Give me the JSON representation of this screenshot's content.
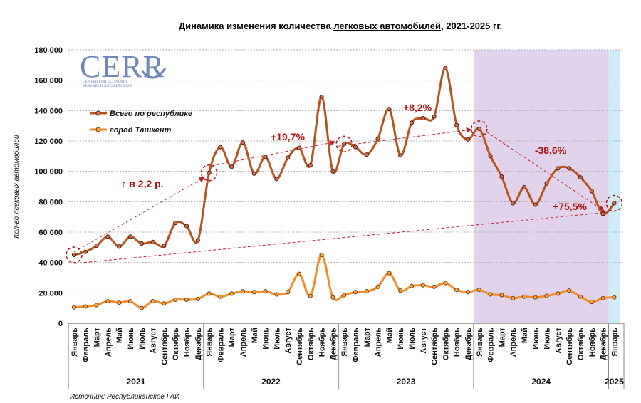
{
  "chart_data": {
    "type": "line",
    "title_prefix": "Динамика изменения количества ",
    "title_underlined": "легковых автомобилей",
    "title_suffix": ", 2021-2025 гг.",
    "ylabel": "Кол-во легковых автомобилей",
    "ylim": [
      0,
      180000
    ],
    "yticks": [
      0,
      20000,
      40000,
      60000,
      80000,
      100000,
      120000,
      140000,
      160000,
      180000
    ],
    "ytick_labels": [
      "0",
      "20 000",
      "40 000",
      "60 000",
      "80 000",
      "100 000",
      "120 000",
      "140 000",
      "160 000",
      "180 000"
    ],
    "categories": [
      "Январь",
      "Февраль",
      "Март",
      "Апрель",
      "Май",
      "Июнь",
      "Июль",
      "Август",
      "Сентябрь",
      "Октябрь",
      "Ноябрь",
      "Декабрь",
      "Январь",
      "Февраль",
      "Март",
      "Апрель",
      "Май",
      "Июнь",
      "Июль",
      "Август",
      "Сентябрь",
      "Октябрь",
      "Ноябрь",
      "Декабрь",
      "Январь",
      "Февраль",
      "Март",
      "Апрель",
      "Май",
      "Июнь",
      "Июль",
      "Август",
      "Сентябрь",
      "Октябрь",
      "Ноябрь",
      "Декабрь",
      "Январь",
      "Февраль",
      "Март",
      "Апрель",
      "Май",
      "Июнь",
      "Июль",
      "Август",
      "Сентябрь",
      "Октябрь",
      "Ноябрь",
      "Декабрь",
      "Январь"
    ],
    "years": [
      {
        "label": "2021",
        "start": 0,
        "end": 11
      },
      {
        "label": "2022",
        "start": 12,
        "end": 23
      },
      {
        "label": "2023",
        "start": 24,
        "end": 35
      },
      {
        "label": "2024",
        "start": 36,
        "end": 47
      },
      {
        "label": "2025",
        "start": 48,
        "end": 48
      }
    ],
    "series": [
      {
        "name": "Всего по республике",
        "color": "#b5541c",
        "values": [
          45000,
          47000,
          51000,
          57000,
          50500,
          57000,
          52500,
          53500,
          51000,
          66000,
          64000,
          54500,
          99000,
          116000,
          103000,
          119000,
          98500,
          109500,
          95000,
          109000,
          115500,
          104000,
          149000,
          100000,
          118000,
          116000,
          111000,
          121500,
          141000,
          110500,
          132000,
          135000,
          136000,
          168000,
          130500,
          121000,
          128000,
          110000,
          96500,
          79000,
          89500,
          78000,
          92000,
          102000,
          102000,
          96000,
          87000,
          72000,
          79000
        ]
      },
      {
        "name": "город Ташкент",
        "color": "#f08c2a",
        "values": [
          10500,
          11000,
          12000,
          14500,
          13500,
          14500,
          10000,
          14500,
          13000,
          15500,
          15500,
          16000,
          19500,
          17500,
          19500,
          21000,
          20500,
          21000,
          19000,
          20500,
          32500,
          18000,
          45000,
          17000,
          18500,
          20500,
          21000,
          24000,
          33000,
          21500,
          24500,
          25000,
          24000,
          26500,
          22000,
          20500,
          22000,
          19000,
          18500,
          16500,
          17500,
          17000,
          18000,
          19500,
          21500,
          17500,
          14000,
          16500,
          17000
        ]
      }
    ],
    "shaded_regions": [
      {
        "start": 36,
        "end": 47,
        "color": "#e2d3ec"
      },
      {
        "start": 48,
        "end": 48,
        "color": "#cdeef7"
      }
    ],
    "annotations": [
      {
        "text": "↑ в 2,2 р."
      },
      {
        "text": "+19,7%"
      },
      {
        "text": "+8,2%"
      },
      {
        "text": "-38,6%"
      },
      {
        "text": "+75,5%"
      }
    ],
    "legend_position": "top-left",
    "grid": "horizontal-dotted",
    "source": "Источник: Республиканское ГАИ",
    "logo": {
      "main": "CERR",
      "line1": "CENTER FOR ECONOMIC",
      "line2": "RESEARCH AND REFORMS"
    }
  }
}
